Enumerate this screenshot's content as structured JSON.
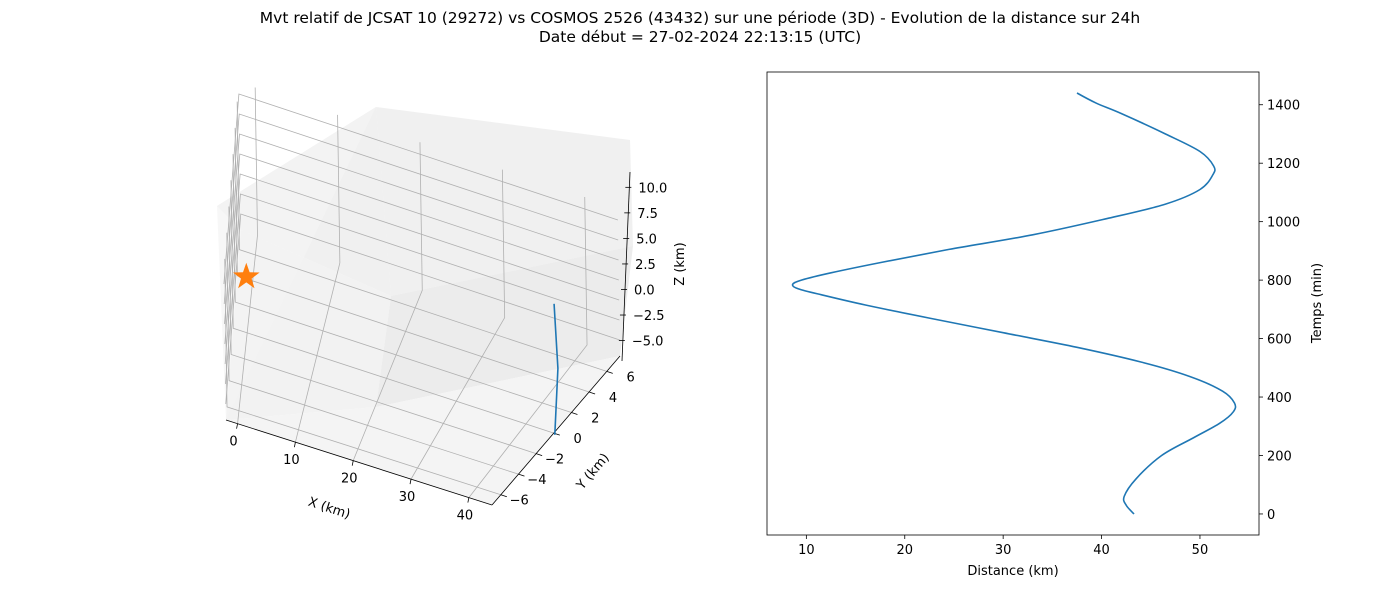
{
  "figure": {
    "title_line1": "Mvt relatif de JCSAT 10 (29272) vs COSMOS 2526 (43432) sur une période (3D) - Evolution de la distance sur 24h",
    "title_line2": "Date début = 27-02-2024 22:13:15 (UTC)"
  },
  "colors": {
    "series": "#1f77b4",
    "marker": "#ff7f0e"
  },
  "chart_data": [
    {
      "type": "line3d",
      "xlabel": "X (km)",
      "ylabel": "Y (km)",
      "zlabel": "Z (km)",
      "xlim": [
        -2,
        44
      ],
      "ylim": [
        -7,
        7.5
      ],
      "zlim": [
        -7,
        11.5
      ],
      "xticks": [
        "0",
        "10",
        "20",
        "30",
        "40"
      ],
      "yticks": [
        "−6",
        "−4",
        "−2",
        "0",
        "2",
        "4",
        "6"
      ],
      "zticks": [
        "−5.0",
        "−2.5",
        "0.0",
        "2.5",
        "5.0",
        "7.5",
        "10.0"
      ],
      "grid": true,
      "marker": {
        "shape": "star",
        "x": 0,
        "y": 0,
        "z": 0
      },
      "series": [
        {
          "x": [
            37.5,
            40.5,
            43.5
          ],
          "y": [
            6,
            3.5,
            0.5
          ],
          "z": [
            -0.7,
            -4.5,
            -8.0
          ]
        }
      ]
    },
    {
      "type": "line",
      "xlabel": "Distance (km)",
      "ylabel": "Temps (min)",
      "xlim": [
        6,
        56
      ],
      "ylim": [
        -72,
        1512
      ],
      "xticks": [
        "10",
        "20",
        "30",
        "40",
        "50"
      ],
      "yticks": [
        "0",
        "200",
        "400",
        "600",
        "800",
        "1000",
        "1200",
        "1400"
      ],
      "y_axis_side": "right",
      "series": [
        {
          "points": [
            [
              43.3,
              0
            ],
            [
              42.5,
              30
            ],
            [
              42.3,
              60
            ],
            [
              43.5,
              120
            ],
            [
              46.1,
              200
            ],
            [
              49.3,
              260
            ],
            [
              52.0,
              310
            ],
            [
              53.4,
              350
            ],
            [
              53.5,
              380
            ],
            [
              52.3,
              420
            ],
            [
              49.0,
              470
            ],
            [
              44.0,
              520
            ],
            [
              37.5,
              570
            ],
            [
              30.0,
              620
            ],
            [
              22.5,
              670
            ],
            [
              16.0,
              715
            ],
            [
              11.5,
              750
            ],
            [
              9.2,
              770
            ],
            [
              8.6,
              785
            ],
            [
              9.5,
              800
            ],
            [
              12.5,
              825
            ],
            [
              17.5,
              860
            ],
            [
              24.5,
              905
            ],
            [
              33.0,
              955
            ],
            [
              40.5,
              1010
            ],
            [
              46.5,
              1060
            ],
            [
              50.0,
              1110
            ],
            [
              51.3,
              1160
            ],
            [
              51.4,
              1190
            ],
            [
              50.0,
              1240
            ],
            [
              46.5,
              1300
            ],
            [
              42.0,
              1370
            ],
            [
              39.5,
              1405
            ],
            [
              37.5,
              1440
            ]
          ]
        }
      ]
    }
  ]
}
